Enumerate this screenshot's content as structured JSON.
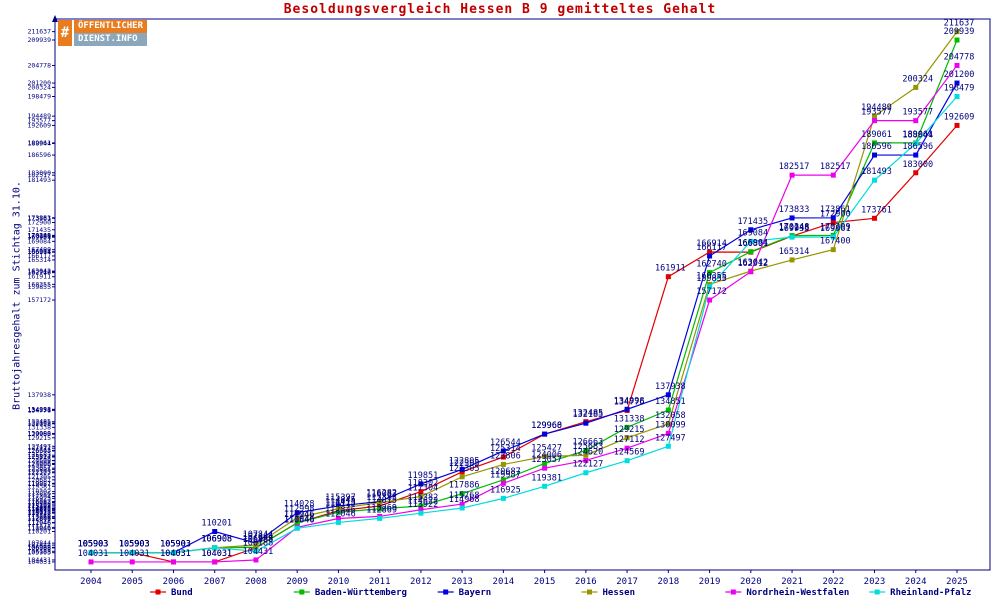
{
  "logo": {
    "mark": "#",
    "line1": "ÖFFENTLICHER",
    "line2": "DIENST.INFO"
  },
  "colors": {
    "title": "#c00000",
    "axis": "#000080",
    "labels": "#000080",
    "background": "#ffffff"
  },
  "chart_data": {
    "type": "line",
    "title": "Besoldungsvergleich Hessen B 9 gemitteltes Gehalt",
    "ylabel": "Bruttojahresgehalt zum Stichtag 31.10.",
    "xlabel": "",
    "grid": false,
    "legend_position": "bottom",
    "ylim": [
      103000,
      214000
    ],
    "x": [
      2004,
      2005,
      2006,
      2007,
      2008,
      2009,
      2010,
      2011,
      2012,
      2013,
      2014,
      2015,
      2016,
      2017,
      2018,
      2019,
      2020,
      2021,
      2022,
      2023,
      2024,
      2025
    ],
    "series": [
      {
        "name": "Bund",
        "color": "#e00000",
        "values": [
          105903,
          105903,
          104031,
          104031,
          106888,
          111946,
          114415,
          115383,
          118302,
          122305,
          125314,
          129960,
          132485,
          134776,
          161911,
          166914,
          166891,
          170148,
          172900,
          173761,
          183000,
          192609
        ]
      },
      {
        "name": "Baden-Württemberg",
        "color": "#00bb00",
        "values": [
          105903,
          105903,
          105903,
          106908,
          106988,
          111946,
          114115,
          114815,
          115382,
          117886,
          120687,
          124006,
          126663,
          131338,
          134851,
          162740,
          166984,
          170248,
          170299,
          189061,
          189061,
          209939
        ]
      },
      {
        "name": "Bayern",
        "color": "#0000dd",
        "values": [
          105903,
          105903,
          105903,
          110201,
          107844,
          114028,
          115397,
          116282,
          119851,
          122805,
          126544,
          129968,
          132185,
          134998,
          137938,
          166117,
          171435,
          173833,
          173861,
          186596,
          186596,
          201200
        ]
      },
      {
        "name": "Hessen",
        "color": "#969600",
        "values": [
          105903,
          105903,
          105903,
          106908,
          107444,
          112998,
          114845,
          116083,
          117304,
          121305,
          123806,
          125427,
          125683,
          129215,
          132058,
          160355,
          163042,
          165314,
          167400,
          194489,
          200324,
          211637
        ]
      },
      {
        "name": "Nordrhein-Westfalen",
        "color": "#ee00ee",
        "values": [
          104031,
          104031,
          104031,
          104031,
          104431,
          111046,
          112846,
          113269,
          114622,
          115768,
          119987,
          123057,
          124620,
          127112,
          130099,
          157172,
          162912,
          182517,
          182517,
          193577,
          193577,
          204778
        ]
      },
      {
        "name": "Rheinland-Pfalz",
        "color": "#00dddd",
        "values": [
          105903,
          105903,
          105903,
          106908,
          106188,
          110846,
          112046,
          112869,
          113922,
          114968,
          116925,
          119381,
          122127,
          124569,
          127497,
          159855,
          169084,
          169935,
          169961,
          181493,
          188944,
          198479
        ]
      }
    ]
  }
}
